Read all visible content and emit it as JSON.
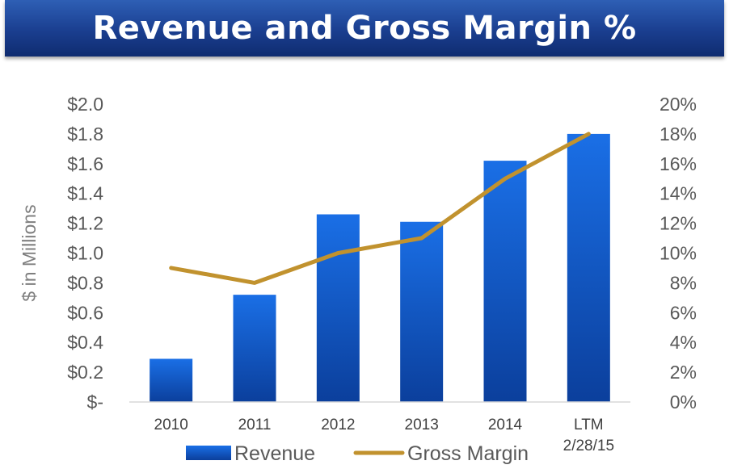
{
  "header": {
    "title": "Revenue and Gross Margin %"
  },
  "chart_data": {
    "type": "bar",
    "title": "Revenue and Gross Margin %",
    "categories": [
      "2010",
      "2011",
      "2012",
      "2013",
      "2014",
      "LTM 2/28/15"
    ],
    "category_lines": [
      [
        "2010"
      ],
      [
        "2011"
      ],
      [
        "2012"
      ],
      [
        "2013"
      ],
      [
        "2014"
      ],
      [
        "LTM",
        "2/28/15"
      ]
    ],
    "series": [
      {
        "name": "Revenue",
        "type": "bar",
        "axis": "left",
        "values": [
          0.29,
          0.72,
          1.26,
          1.21,
          1.62,
          1.8
        ],
        "color": "#1565d8"
      },
      {
        "name": "Gross Margin",
        "type": "line",
        "axis": "right",
        "values": [
          9,
          8,
          10,
          11,
          15,
          18
        ],
        "color": "#c1922e"
      }
    ],
    "ylabel": "$ in Millions",
    "ylim": [
      0,
      2.0
    ],
    "y2lim": [
      0,
      20
    ],
    "yticks": [
      "$-",
      "$0.2",
      "$0.4",
      "$0.6",
      "$0.8",
      "$1.0",
      "$1.2",
      "$1.4",
      "$1.6",
      "$1.8",
      "$2.0"
    ],
    "y2ticks": [
      "0%",
      "2%",
      "4%",
      "6%",
      "8%",
      "10%",
      "12%",
      "14%",
      "16%",
      "18%",
      "20%"
    ],
    "grid": false,
    "legend_placement": "bottom"
  }
}
